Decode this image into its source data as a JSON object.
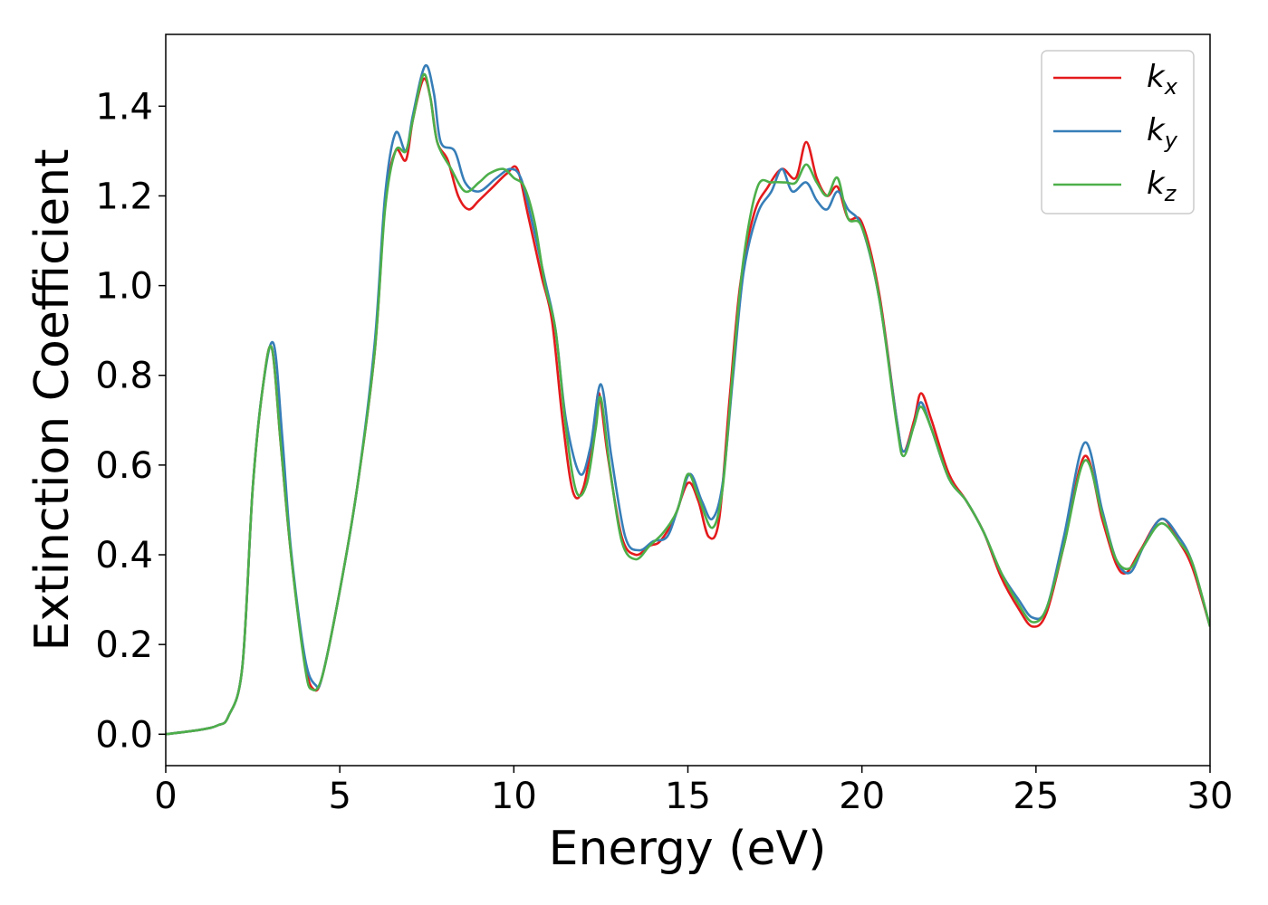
{
  "chart_data": {
    "type": "line",
    "xlabel": "Energy (eV)",
    "ylabel": "Extinction Coefficient",
    "xlim": [
      0,
      30
    ],
    "ylim": [
      -0.07,
      1.56
    ],
    "xticks": [
      0,
      5,
      10,
      15,
      20,
      25,
      30
    ],
    "xtick_labels": [
      "0",
      "5",
      "10",
      "15",
      "20",
      "25",
      "30"
    ],
    "yticks": [
      0.0,
      0.2,
      0.4,
      0.6,
      0.8,
      1.0,
      1.2,
      1.4
    ],
    "ytick_labels": [
      "0.0",
      "0.2",
      "0.4",
      "0.6",
      "0.8",
      "1.0",
      "1.2",
      "1.4"
    ],
    "grid": false,
    "legend_position": "top-right",
    "series": [
      {
        "name": "k_x",
        "label_base": "k",
        "label_sub": "x",
        "color": "#e41a1c",
        "points": [
          [
            0,
            0
          ],
          [
            1,
            0.01
          ],
          [
            1.5,
            0.02
          ],
          [
            1.8,
            0.04
          ],
          [
            2.2,
            0.15
          ],
          [
            2.5,
            0.55
          ],
          [
            2.8,
            0.78
          ],
          [
            3.05,
            0.86
          ],
          [
            3.3,
            0.65
          ],
          [
            3.6,
            0.4
          ],
          [
            4,
            0.16
          ],
          [
            4.25,
            0.1
          ],
          [
            4.5,
            0.13
          ],
          [
            5,
            0.32
          ],
          [
            5.5,
            0.55
          ],
          [
            6,
            0.85
          ],
          [
            6.3,
            1.18
          ],
          [
            6.6,
            1.3
          ],
          [
            6.9,
            1.28
          ],
          [
            7.1,
            1.37
          ],
          [
            7.4,
            1.46
          ],
          [
            7.6,
            1.42
          ],
          [
            7.8,
            1.32
          ],
          [
            8.1,
            1.28
          ],
          [
            8.4,
            1.2
          ],
          [
            8.7,
            1.17
          ],
          [
            9,
            1.19
          ],
          [
            9.4,
            1.22
          ],
          [
            9.8,
            1.25
          ],
          [
            10.1,
            1.26
          ],
          [
            10.4,
            1.16
          ],
          [
            10.8,
            1.02
          ],
          [
            11.1,
            0.92
          ],
          [
            11.4,
            0.7
          ],
          [
            11.7,
            0.54
          ],
          [
            12,
            0.55
          ],
          [
            12.3,
            0.68
          ],
          [
            12.45,
            0.76
          ],
          [
            12.7,
            0.62
          ],
          [
            13.1,
            0.44
          ],
          [
            13.5,
            0.4
          ],
          [
            13.9,
            0.42
          ],
          [
            14.2,
            0.43
          ],
          [
            14.6,
            0.48
          ],
          [
            15,
            0.56
          ],
          [
            15.3,
            0.52
          ],
          [
            15.6,
            0.44
          ],
          [
            15.9,
            0.48
          ],
          [
            16.2,
            0.75
          ],
          [
            16.5,
            1.0
          ],
          [
            16.9,
            1.16
          ],
          [
            17.3,
            1.22
          ],
          [
            17.7,
            1.26
          ],
          [
            18.1,
            1.24
          ],
          [
            18.4,
            1.32
          ],
          [
            18.7,
            1.24
          ],
          [
            19,
            1.2
          ],
          [
            19.3,
            1.22
          ],
          [
            19.6,
            1.15
          ],
          [
            20,
            1.14
          ],
          [
            20.5,
            0.98
          ],
          [
            21,
            0.7
          ],
          [
            21.2,
            0.63
          ],
          [
            21.5,
            0.7
          ],
          [
            21.7,
            0.76
          ],
          [
            22,
            0.7
          ],
          [
            22.5,
            0.58
          ],
          [
            23,
            0.52
          ],
          [
            23.5,
            0.45
          ],
          [
            24,
            0.35
          ],
          [
            24.5,
            0.28
          ],
          [
            24.9,
            0.24
          ],
          [
            25.3,
            0.27
          ],
          [
            25.8,
            0.42
          ],
          [
            26.4,
            0.62
          ],
          [
            26.9,
            0.48
          ],
          [
            27.3,
            0.38
          ],
          [
            27.6,
            0.36
          ],
          [
            28,
            0.41
          ],
          [
            28.6,
            0.48
          ],
          [
            29.1,
            0.43
          ],
          [
            29.5,
            0.37
          ],
          [
            30,
            0.24
          ]
        ]
      },
      {
        "name": "k_y",
        "label_base": "k",
        "label_sub": "y",
        "color": "#377eb8",
        "points": [
          [
            0,
            0
          ],
          [
            1,
            0.01
          ],
          [
            1.5,
            0.02
          ],
          [
            1.8,
            0.04
          ],
          [
            2.2,
            0.15
          ],
          [
            2.5,
            0.55
          ],
          [
            2.8,
            0.78
          ],
          [
            3.1,
            0.87
          ],
          [
            3.35,
            0.66
          ],
          [
            3.6,
            0.41
          ],
          [
            4,
            0.17
          ],
          [
            4.3,
            0.11
          ],
          [
            4.5,
            0.13
          ],
          [
            5,
            0.32
          ],
          [
            5.5,
            0.55
          ],
          [
            6,
            0.87
          ],
          [
            6.3,
            1.2
          ],
          [
            6.6,
            1.34
          ],
          [
            6.9,
            1.3
          ],
          [
            7.1,
            1.38
          ],
          [
            7.45,
            1.49
          ],
          [
            7.7,
            1.43
          ],
          [
            7.9,
            1.32
          ],
          [
            8.3,
            1.3
          ],
          [
            8.6,
            1.23
          ],
          [
            9,
            1.21
          ],
          [
            9.5,
            1.24
          ],
          [
            9.9,
            1.26
          ],
          [
            10.2,
            1.24
          ],
          [
            10.5,
            1.15
          ],
          [
            10.9,
            1.01
          ],
          [
            11.2,
            0.9
          ],
          [
            11.5,
            0.7
          ],
          [
            11.9,
            0.58
          ],
          [
            12.2,
            0.64
          ],
          [
            12.5,
            0.78
          ],
          [
            12.8,
            0.62
          ],
          [
            13.2,
            0.44
          ],
          [
            13.6,
            0.41
          ],
          [
            14,
            0.43
          ],
          [
            14.4,
            0.44
          ],
          [
            14.7,
            0.5
          ],
          [
            15.05,
            0.58
          ],
          [
            15.4,
            0.52
          ],
          [
            15.7,
            0.48
          ],
          [
            16,
            0.56
          ],
          [
            16.3,
            0.8
          ],
          [
            16.6,
            1.03
          ],
          [
            17,
            1.16
          ],
          [
            17.4,
            1.21
          ],
          [
            17.7,
            1.26
          ],
          [
            18,
            1.21
          ],
          [
            18.4,
            1.23
          ],
          [
            18.7,
            1.19
          ],
          [
            19,
            1.17
          ],
          [
            19.3,
            1.21
          ],
          [
            19.6,
            1.17
          ],
          [
            20,
            1.13
          ],
          [
            20.5,
            0.97
          ],
          [
            21,
            0.7
          ],
          [
            21.2,
            0.63
          ],
          [
            21.5,
            0.69
          ],
          [
            21.7,
            0.74
          ],
          [
            22,
            0.68
          ],
          [
            22.5,
            0.57
          ],
          [
            23,
            0.52
          ],
          [
            23.5,
            0.45
          ],
          [
            24,
            0.36
          ],
          [
            24.5,
            0.3
          ],
          [
            24.9,
            0.26
          ],
          [
            25.3,
            0.28
          ],
          [
            25.8,
            0.44
          ],
          [
            26.4,
            0.65
          ],
          [
            26.9,
            0.5
          ],
          [
            27.3,
            0.39
          ],
          [
            27.7,
            0.36
          ],
          [
            28.1,
            0.42
          ],
          [
            28.6,
            0.48
          ],
          [
            29.1,
            0.44
          ],
          [
            29.5,
            0.38
          ],
          [
            30,
            0.24
          ]
        ]
      },
      {
        "name": "k_z",
        "label_base": "k",
        "label_sub": "z",
        "color": "#4daf4a",
        "points": [
          [
            0,
            0
          ],
          [
            1,
            0.01
          ],
          [
            1.5,
            0.02
          ],
          [
            1.8,
            0.04
          ],
          [
            2.2,
            0.15
          ],
          [
            2.5,
            0.55
          ],
          [
            2.8,
            0.78
          ],
          [
            3.05,
            0.86
          ],
          [
            3.3,
            0.65
          ],
          [
            3.6,
            0.4
          ],
          [
            4,
            0.15
          ],
          [
            4.2,
            0.1
          ],
          [
            4.5,
            0.13
          ],
          [
            5,
            0.32
          ],
          [
            5.5,
            0.55
          ],
          [
            6,
            0.85
          ],
          [
            6.3,
            1.17
          ],
          [
            6.6,
            1.3
          ],
          [
            6.9,
            1.3
          ],
          [
            7.1,
            1.37
          ],
          [
            7.4,
            1.47
          ],
          [
            7.6,
            1.42
          ],
          [
            7.8,
            1.32
          ],
          [
            8.2,
            1.26
          ],
          [
            8.6,
            1.21
          ],
          [
            9,
            1.23
          ],
          [
            9.3,
            1.25
          ],
          [
            9.7,
            1.26
          ],
          [
            10,
            1.24
          ],
          [
            10.3,
            1.22
          ],
          [
            10.6,
            1.14
          ],
          [
            10.9,
            1.0
          ],
          [
            11.2,
            0.9
          ],
          [
            11.5,
            0.68
          ],
          [
            11.8,
            0.54
          ],
          [
            12.1,
            0.56
          ],
          [
            12.35,
            0.68
          ],
          [
            12.5,
            0.75
          ],
          [
            12.75,
            0.6
          ],
          [
            13.1,
            0.43
          ],
          [
            13.5,
            0.39
          ],
          [
            13.9,
            0.42
          ],
          [
            14.3,
            0.45
          ],
          [
            14.7,
            0.5
          ],
          [
            15,
            0.58
          ],
          [
            15.3,
            0.53
          ],
          [
            15.7,
            0.46
          ],
          [
            16,
            0.55
          ],
          [
            16.3,
            0.82
          ],
          [
            16.6,
            1.06
          ],
          [
            17,
            1.22
          ],
          [
            17.4,
            1.23
          ],
          [
            17.8,
            1.23
          ],
          [
            18.1,
            1.23
          ],
          [
            18.4,
            1.27
          ],
          [
            18.7,
            1.23
          ],
          [
            19,
            1.2
          ],
          [
            19.3,
            1.24
          ],
          [
            19.6,
            1.15
          ],
          [
            20,
            1.13
          ],
          [
            20.5,
            0.97
          ],
          [
            21,
            0.69
          ],
          [
            21.2,
            0.62
          ],
          [
            21.5,
            0.69
          ],
          [
            21.7,
            0.73
          ],
          [
            22,
            0.68
          ],
          [
            22.5,
            0.57
          ],
          [
            23,
            0.52
          ],
          [
            23.5,
            0.45
          ],
          [
            24,
            0.36
          ],
          [
            24.5,
            0.29
          ],
          [
            24.9,
            0.25
          ],
          [
            25.3,
            0.28
          ],
          [
            25.8,
            0.42
          ],
          [
            26.4,
            0.61
          ],
          [
            26.9,
            0.49
          ],
          [
            27.3,
            0.39
          ],
          [
            27.7,
            0.37
          ],
          [
            28.1,
            0.42
          ],
          [
            28.6,
            0.47
          ],
          [
            29.1,
            0.43
          ],
          [
            29.5,
            0.38
          ],
          [
            30,
            0.24
          ]
        ]
      }
    ]
  }
}
